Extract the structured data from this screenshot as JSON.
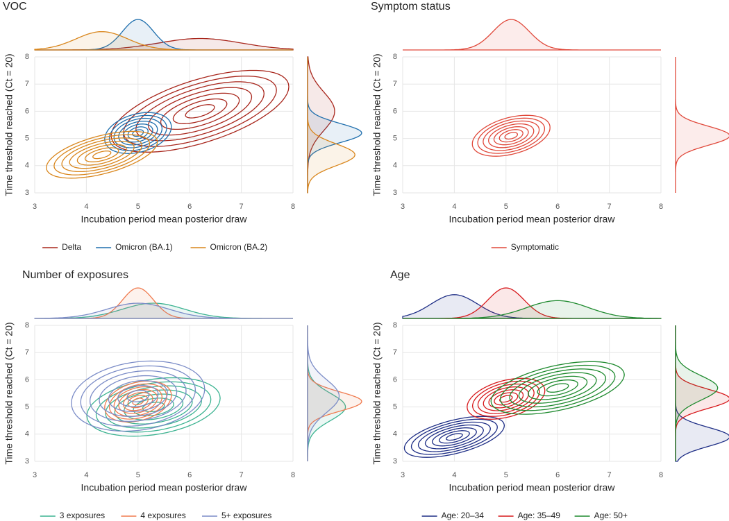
{
  "chart_data": [
    {
      "type": "density2d",
      "title": "VOC",
      "x_label": "Incubation period mean posterior draw",
      "y_label": "Time threshold reached (Ct = 20)",
      "xlim": [
        3,
        8
      ],
      "ylim": [
        3,
        8
      ],
      "xticks": [
        3,
        4,
        5,
        6,
        7,
        8
      ],
      "yticks": [
        3,
        4,
        5,
        6,
        7,
        8
      ],
      "grid": true,
      "legend": "bottom",
      "series": [
        {
          "name": "Delta",
          "color": "#a8261c",
          "x_center": 6.2,
          "y_center": 6.0,
          "x_spread": 0.8,
          "y_spread": 0.7,
          "correlation": 0.6
        },
        {
          "name": "Omicron (BA.1)",
          "color": "#1f6fad",
          "x_center": 5.0,
          "y_center": 5.2,
          "x_spread": 0.3,
          "y_spread": 0.35,
          "correlation": 0.3
        },
        {
          "name": "Omicron (BA.2)",
          "color": "#d9861c",
          "x_center": 4.3,
          "y_center": 4.4,
          "x_spread": 0.5,
          "y_spread": 0.4,
          "correlation": 0.55
        }
      ]
    },
    {
      "type": "density2d",
      "title": "Symptom status",
      "x_label": "Incubation period mean posterior draw",
      "y_label": "Time threshold reached (Ct = 20)",
      "xlim": [
        3,
        8
      ],
      "ylim": [
        3,
        8
      ],
      "xticks": [
        3,
        4,
        5,
        6,
        7,
        8
      ],
      "yticks": [
        3,
        4,
        5,
        6,
        7,
        8
      ],
      "grid": true,
      "legend": "bottom",
      "series": [
        {
          "name": "Symptomatic",
          "color": "#e0483a",
          "x_center": 5.1,
          "y_center": 5.1,
          "x_spread": 0.35,
          "y_spread": 0.35,
          "correlation": 0.4
        }
      ]
    },
    {
      "type": "density2d",
      "title": "Number of exposures",
      "x_label": "Incubation period mean posterior draw",
      "y_label": "Time threshold reached (Ct = 20)",
      "xlim": [
        3,
        8
      ],
      "ylim": [
        3,
        8
      ],
      "xticks": [
        3,
        4,
        5,
        6,
        7,
        8
      ],
      "yticks": [
        3,
        4,
        5,
        6,
        7,
        8
      ],
      "grid": true,
      "legend": "bottom",
      "series": [
        {
          "name": "3 exposures",
          "color": "#3cb391",
          "x_center": 5.3,
          "y_center": 5.0,
          "x_spread": 0.6,
          "y_spread": 0.5,
          "correlation": 0.3
        },
        {
          "name": "4 exposures",
          "color": "#f07b4f",
          "x_center": 5.0,
          "y_center": 5.2,
          "x_spread": 0.3,
          "y_spread": 0.35,
          "correlation": 0.3
        },
        {
          "name": "5+ exposures",
          "color": "#7b8cc7",
          "x_center": 5.0,
          "y_center": 5.4,
          "x_spread": 0.6,
          "y_spread": 0.6,
          "correlation": 0.2
        }
      ]
    },
    {
      "type": "density2d",
      "title": "Age",
      "x_label": "Incubation period mean posterior draw",
      "y_label": "Time threshold reached (Ct = 20)",
      "xlim": [
        3,
        8
      ],
      "ylim": [
        3,
        8
      ],
      "xticks": [
        3,
        4,
        5,
        6,
        7,
        8
      ],
      "yticks": [
        3,
        4,
        5,
        6,
        7,
        8
      ],
      "grid": true,
      "legend": "bottom",
      "series": [
        {
          "name": "Age: 20–34",
          "color": "#1e2e86",
          "x_center": 4.0,
          "y_center": 3.9,
          "x_spread": 0.45,
          "y_spread": 0.35,
          "correlation": 0.55
        },
        {
          "name": "Age: 35–49",
          "color": "#d7191c",
          "x_center": 5.0,
          "y_center": 5.3,
          "x_spread": 0.35,
          "y_spread": 0.35,
          "correlation": 0.4
        },
        {
          "name": "Age: 50+",
          "color": "#1e8a2e",
          "x_center": 6.0,
          "y_center": 5.7,
          "x_spread": 0.6,
          "y_spread": 0.45,
          "correlation": 0.5
        }
      ]
    }
  ]
}
